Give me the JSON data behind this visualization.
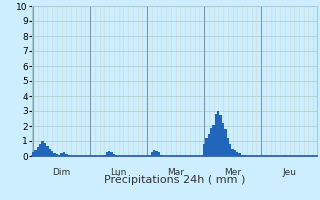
{
  "xlabel": "Précipitations 24h ( mm )",
  "ylim": [
    0,
    10
  ],
  "background_color": "#cceeff",
  "bar_color": "#2266bb",
  "grid_major_color": "#aacccc",
  "grid_minor_color": "#ccdddd",
  "vline_color": "#7799aa",
  "days": [
    "Dim",
    "Lun",
    "Mar",
    "Mer",
    "Jeu"
  ],
  "day_positions": [
    0,
    24,
    48,
    72,
    96
  ],
  "n_hours": 120,
  "values": [
    0.3,
    0.4,
    0.6,
    0.8,
    1.0,
    0.9,
    0.7,
    0.5,
    0.35,
    0.2,
    0.15,
    0.1,
    0.2,
    0.25,
    0.15,
    0.1,
    0.0,
    0.0,
    0.0,
    0.0,
    0.0,
    0.0,
    0.0,
    0.0,
    0.0,
    0.0,
    0.0,
    0.0,
    0.0,
    0.0,
    0.1,
    0.3,
    0.35,
    0.25,
    0.15,
    0.1,
    0.0,
    0.0,
    0.0,
    0.0,
    0.0,
    0.0,
    0.0,
    0.0,
    0.0,
    0.0,
    0.0,
    0.0,
    0.0,
    0.0,
    0.3,
    0.4,
    0.35,
    0.25,
    0.1,
    0.0,
    0.0,
    0.0,
    0.0,
    0.0,
    0.0,
    0.0,
    0.0,
    0.0,
    0.0,
    0.0,
    0.0,
    0.0,
    0.0,
    0.0,
    0.0,
    0.0,
    0.8,
    1.2,
    1.5,
    1.9,
    2.1,
    2.8,
    3.0,
    2.75,
    2.2,
    1.8,
    1.2,
    0.8,
    0.5,
    0.4,
    0.3,
    0.2,
    0.1,
    0.05,
    0.0,
    0.0,
    0.0,
    0.0,
    0.0,
    0.0,
    0.0,
    0.0,
    0.0,
    0.0,
    0.0,
    0.0,
    0.0,
    0.0,
    0.0,
    0.0,
    0.1,
    0.0,
    0.0,
    0.0,
    0.0,
    0.0,
    0.0,
    0.0,
    0.0,
    0.0,
    0.0,
    0.0,
    0.1,
    0.0
  ],
  "yticks": [
    0,
    1,
    2,
    3,
    4,
    5,
    6,
    7,
    8,
    9,
    10
  ],
  "xlabel_fontsize": 8,
  "tick_fontsize": 6.5,
  "bottom_spine_color": "#2255aa",
  "figure_bg": "#cceeff"
}
